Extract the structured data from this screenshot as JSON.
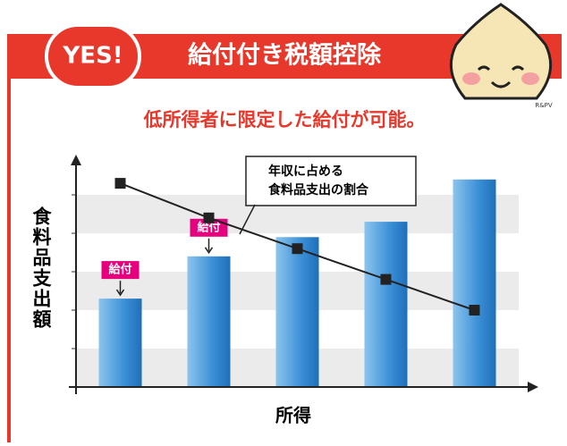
{
  "header": {
    "badge": "YES!",
    "title": "給付付き税額控除",
    "credit": "R&PV"
  },
  "chart_data": {
    "type": "bar-line",
    "title": "低所得者に限定した給付が可能。",
    "y_label": "食料品支出額",
    "x_label": "所得",
    "categories": [
      null,
      null,
      null,
      null,
      null
    ],
    "series": [
      {
        "type": "bar",
        "color": "#3a8fd6",
        "values": [
          2.3,
          3.4,
          3.9,
          4.3,
          5.4
        ],
        "labels": [
          "給付",
          "給付",
          null,
          null,
          null
        ]
      },
      {
        "type": "line",
        "color": "#222222",
        "values": [
          5.3,
          4.4,
          3.6,
          2.8,
          2.0
        ]
      }
    ],
    "annotation": [
      "年収に占める",
      "食料品支出の割合"
    ],
    "ylim": [
      0,
      6
    ],
    "bands": true
  }
}
